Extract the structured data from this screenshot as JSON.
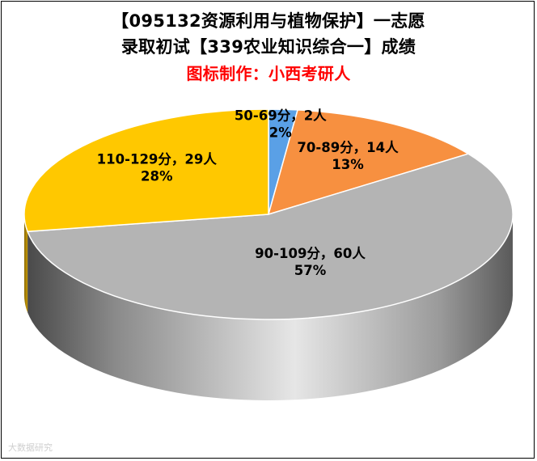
{
  "chart_data": {
    "type": "pie",
    "title_line1": "【095132资源利用与植物保护】一志愿",
    "title_line2": "录取初试【339农业知识综合一】成绩",
    "subtitle": "图标制作：小西考研人",
    "slices": [
      {
        "label": "50-69分，2人",
        "count": 2,
        "percent": "2%",
        "color": "#5aa0e6"
      },
      {
        "label": "70-89分，14人",
        "count": 14,
        "percent": "13%",
        "color": "#f79040"
      },
      {
        "label": "90-109分，60人",
        "count": 60,
        "percent": "57%",
        "color": "#b4b4b4"
      },
      {
        "label": "110-129分，29人",
        "count": 29,
        "percent": "28%",
        "color": "#ffc800"
      }
    ]
  },
  "watermark": "大数据研究"
}
